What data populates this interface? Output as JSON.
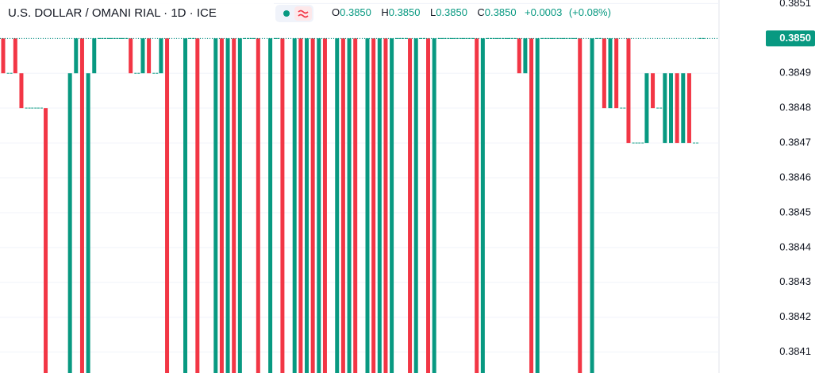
{
  "chart_data": {
    "type": "candlestick",
    "title": "U.S. DOLLAR / OMANI RIAL · 1D · ICE",
    "legend": {
      "open_label": "O",
      "open": {
        "value": 0.385,
        "label": "0.3850"
      },
      "high_label": "H",
      "high": {
        "value": 0.385,
        "label": "0.3850"
      },
      "low_label": "L",
      "low": {
        "value": 0.385,
        "label": "0.3850"
      },
      "close_label": "C",
      "close": {
        "value": 0.385,
        "label": "0.3850"
      },
      "change": {
        "value": 0.0003,
        "label": "+0.0003"
      },
      "change_pct": {
        "value": 0.08,
        "label": "(+0.08%)"
      }
    },
    "last_price": {
      "value": 0.385,
      "label": "0.3850"
    },
    "up_color": "#089981",
    "down_color": "#f23645",
    "ylim": [
      0.38404,
      0.38511
    ],
    "yticks": [
      0.3841,
      0.3842,
      0.3843,
      0.3844,
      0.3845,
      0.3846,
      0.3847,
      0.3848,
      0.3849,
      {
        "value": 0.385,
        "label": "0.3850"
      },
      0.3851
    ],
    "grid": true,
    "open": [
      0.385,
      0.3849,
      0.385,
      0.3849,
      0.3848,
      0.3848,
      0.3848,
      0.3848,
      0.384,
      0.384,
      0.384,
      0.384,
      0.3849,
      0.385,
      0.384,
      0.3849,
      0.385,
      0.385,
      0.385,
      0.385,
      0.385,
      0.385,
      0.3849,
      0.3849,
      0.385,
      0.3849,
      0.3849,
      0.385,
      0.384,
      0.384,
      0.384,
      0.385,
      0.385,
      0.384,
      0.384,
      0.384,
      0.385,
      0.384,
      0.385,
      0.384,
      0.385,
      0.385,
      0.385,
      0.384,
      0.384,
      0.385,
      0.385,
      0.384,
      0.384,
      0.385,
      0.384,
      0.385,
      0.384,
      0.385,
      0.384,
      0.384,
      0.385,
      0.384,
      0.385,
      0.384,
      0.384,
      0.385,
      0.384,
      0.385,
      0.384,
      0.385,
      0.385,
      0.385,
      0.384,
      0.385,
      0.385,
      0.384,
      0.385,
      0.385,
      0.385,
      0.385,
      0.385,
      0.385,
      0.385,
      0.384,
      0.385,
      0.385,
      0.385,
      0.385,
      0.385,
      0.385,
      0.3849,
      0.385,
      0.384,
      0.385,
      0.385,
      0.385,
      0.385,
      0.385,
      0.385,
      0.385,
      0.384,
      0.384,
      0.385,
      0.385,
      0.3848,
      0.385,
      0.3848,
      0.385,
      0.3847,
      0.3847,
      0.3847,
      0.3849,
      0.3848,
      0.3847,
      0.3847,
      0.3849,
      0.3847,
      0.3849,
      0.3847,
      0.385
    ],
    "close": [
      0.3849,
      0.3849,
      0.3849,
      0.3848,
      0.3848,
      0.3848,
      0.3848,
      0.384,
      0.384,
      0.384,
      0.384,
      0.3849,
      0.385,
      0.384,
      0.3849,
      0.385,
      0.385,
      0.385,
      0.385,
      0.385,
      0.385,
      0.3849,
      0.3849,
      0.385,
      0.3849,
      0.3849,
      0.385,
      0.384,
      0.384,
      0.384,
      0.385,
      0.385,
      0.384,
      0.384,
      0.384,
      0.385,
      0.384,
      0.385,
      0.384,
      0.385,
      0.385,
      0.385,
      0.384,
      0.384,
      0.385,
      0.385,
      0.384,
      0.384,
      0.385,
      0.384,
      0.385,
      0.384,
      0.385,
      0.384,
      0.384,
      0.385,
      0.384,
      0.385,
      0.384,
      0.384,
      0.385,
      0.384,
      0.385,
      0.384,
      0.385,
      0.385,
      0.385,
      0.384,
      0.385,
      0.385,
      0.384,
      0.385,
      0.385,
      0.385,
      0.385,
      0.385,
      0.385,
      0.385,
      0.384,
      0.385,
      0.385,
      0.385,
      0.385,
      0.385,
      0.385,
      0.3849,
      0.385,
      0.384,
      0.385,
      0.385,
      0.385,
      0.385,
      0.385,
      0.385,
      0.385,
      0.384,
      0.384,
      0.385,
      0.385,
      0.3848,
      0.385,
      0.3848,
      0.3848,
      0.3847,
      0.3847,
      0.3847,
      0.3849,
      0.3848,
      0.3848,
      0.3849,
      0.3849,
      0.3847,
      0.3849,
      0.3847,
      0.3847,
      0.385
    ]
  }
}
